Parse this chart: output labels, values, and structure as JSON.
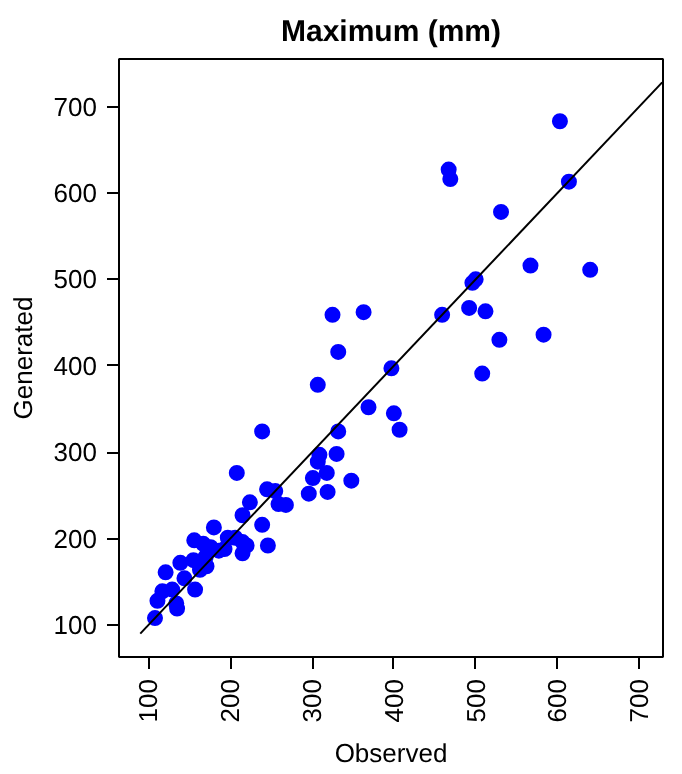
{
  "chart_data": {
    "type": "scatter",
    "title": "Maximum (mm)",
    "xlabel": "Observed",
    "ylabel": "Generated",
    "xlim": [
      64,
      729
    ],
    "ylim": [
      63,
      755
    ],
    "xticks": [
      100,
      200,
      300,
      400,
      500,
      600,
      700
    ],
    "yticks": [
      100,
      200,
      300,
      400,
      500,
      600,
      700
    ],
    "grid": false,
    "series": [
      {
        "marker": "circle",
        "color": "#0000ff",
        "x": [
          603,
          467,
          469,
          614,
          531,
          567,
          640,
          500,
          496,
          325,
          363,
          459,
          492,
          512,
          529,
          583,
          332,
          397,
          508,
          307,
          369,
          400,
          407,
          332,
          239,
          309,
          330,
          307,
          208,
          318,
          301,
          348,
          296,
          319,
          245,
          255,
          259,
          268,
          224,
          215,
          239,
          246,
          180,
          156,
          167,
          176,
          197,
          206,
          215,
          220,
          215,
          186,
          193,
          170,
          155,
          139,
          171,
          163,
          144,
          121,
          157,
          129,
          117,
          111,
          134,
          135,
          108
        ],
        "values": [
          683,
          627,
          616,
          613,
          578,
          516,
          511,
          500,
          496,
          459,
          462,
          459,
          467,
          463,
          430,
          436,
          416,
          397,
          391,
          378,
          352,
          345,
          326,
          324,
          324,
          297,
          298,
          289,
          276,
          276,
          270,
          267,
          252,
          254,
          257,
          255,
          240,
          239,
          242,
          227,
          216,
          192,
          213,
          198,
          194,
          190,
          201,
          201,
          196,
          192,
          183,
          186,
          188,
          179,
          175,
          172,
          168,
          164,
          154,
          161,
          141,
          141,
          139,
          128,
          125,
          119,
          108
        ]
      },
      {
        "type": "line",
        "color": "#000000",
        "line_style": "solid",
        "x": [
          90,
          728
        ],
        "values": [
          90,
          728
        ]
      }
    ]
  }
}
